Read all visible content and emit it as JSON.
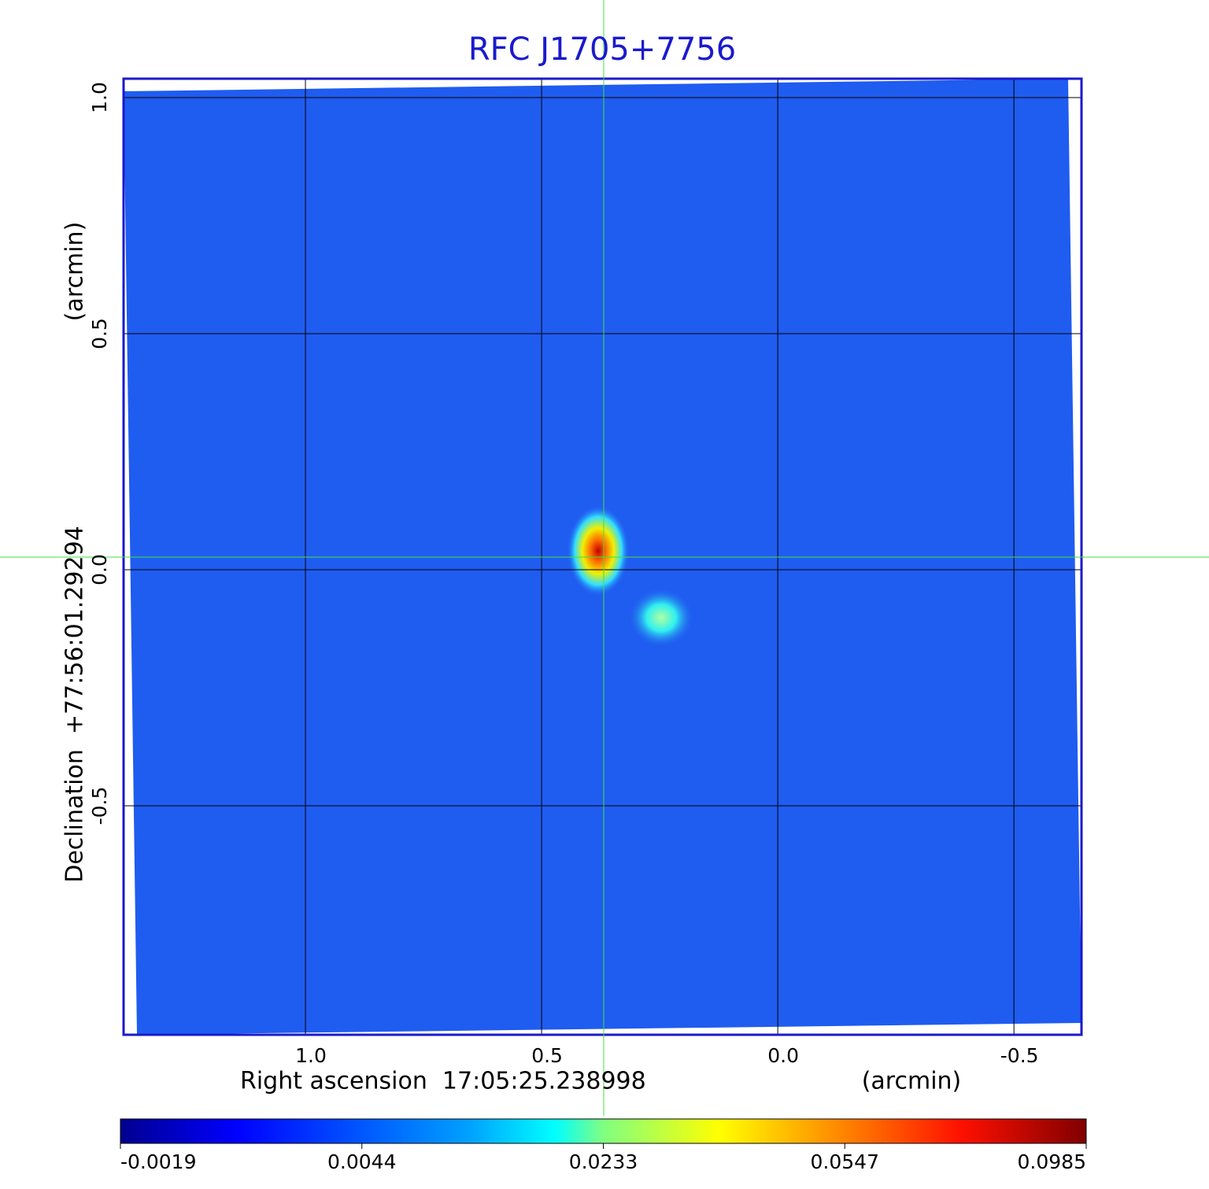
{
  "chart_data": {
    "type": "image",
    "title": "RFC J1705+7756",
    "xlabel": "Right ascension  17:05:25.238998",
    "xunit": "(arcmin)",
    "ylabel": "Declination  +77:56:01.29294",
    "yunit": "(arcmin)",
    "xlim": [
      1.385,
      -0.643
    ],
    "ylim": [
      -0.985,
      1.04
    ],
    "xticks": [
      {
        "value": 1,
        "label": "1.0"
      },
      {
        "value": 0.5,
        "label": "0.5"
      },
      {
        "value": 0,
        "label": "0.0"
      },
      {
        "value": -0.5,
        "label": "-0.5"
      }
    ],
    "yticks": [
      {
        "value": 1,
        "label": "1.0"
      },
      {
        "value": 0.5,
        "label": "0.5"
      },
      {
        "value": 0,
        "label": "0.0"
      },
      {
        "value": -0.5,
        "label": "-0.5"
      }
    ],
    "grid": true,
    "colorbar_ticks": [
      -0.0019,
      0.0044,
      0.0233,
      0.0547,
      0.0985
    ]
  }
}
